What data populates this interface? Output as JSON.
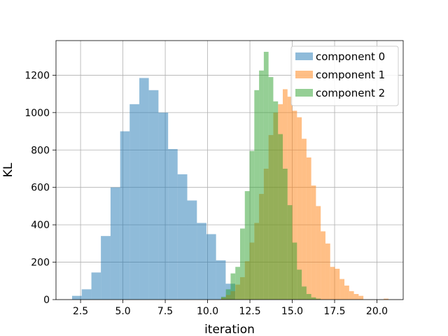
{
  "chart_data": {
    "type": "bar",
    "subtype": "histogram",
    "title": "",
    "xlabel": "iteration",
    "ylabel": "KL",
    "xlim": [
      1.05,
      21.55
    ],
    "ylim": [
      0,
      1385
    ],
    "xticks": [
      2.5,
      5.0,
      7.5,
      10.0,
      12.5,
      15.0,
      17.5,
      20.0
    ],
    "xtick_labels": [
      "2.5",
      "5.0",
      "7.5",
      "10.0",
      "12.5",
      "15.0",
      "17.5",
      "20.0"
    ],
    "yticks": [
      0,
      200,
      400,
      600,
      800,
      1000,
      1200
    ],
    "ytick_labels": [
      "0",
      "200",
      "400",
      "600",
      "800",
      "1000",
      "1200"
    ],
    "grid": true,
    "legend_position": "top-right",
    "series": [
      {
        "name": "component 0",
        "color": "#1f77b4",
        "opacity": 0.5,
        "bins": [
          [
            2.0,
            2.57,
            20
          ],
          [
            2.57,
            3.14,
            55
          ],
          [
            3.14,
            3.7,
            145
          ],
          [
            3.7,
            4.27,
            340
          ],
          [
            4.27,
            4.84,
            600
          ],
          [
            4.84,
            5.4,
            900
          ],
          [
            5.4,
            5.97,
            1045
          ],
          [
            5.97,
            6.53,
            1185
          ],
          [
            6.53,
            7.1,
            1120
          ],
          [
            7.1,
            7.67,
            1000
          ],
          [
            7.67,
            8.23,
            805
          ],
          [
            8.23,
            8.8,
            670
          ],
          [
            8.8,
            9.37,
            530
          ],
          [
            9.37,
            9.93,
            410
          ],
          [
            9.93,
            10.5,
            350
          ],
          [
            10.5,
            11.07,
            210
          ],
          [
            11.07,
            11.63,
            85
          ]
        ]
      },
      {
        "name": "component 1",
        "color": "#ff7f0e",
        "opacity": 0.5,
        "bins": [
          [
            10.8,
            11.08,
            10
          ],
          [
            11.08,
            11.36,
            25
          ],
          [
            11.36,
            11.64,
            45
          ],
          [
            11.64,
            11.92,
            80
          ],
          [
            11.92,
            12.2,
            120
          ],
          [
            12.2,
            12.48,
            205
          ],
          [
            12.48,
            12.76,
            305
          ],
          [
            12.76,
            13.04,
            410
          ],
          [
            13.04,
            13.32,
            565
          ],
          [
            13.32,
            13.6,
            700
          ],
          [
            13.6,
            13.88,
            880
          ],
          [
            13.88,
            14.16,
            1000
          ],
          [
            14.16,
            14.44,
            1045
          ],
          [
            14.44,
            14.72,
            1125
          ],
          [
            14.72,
            15.0,
            1085
          ],
          [
            15.0,
            15.28,
            1010
          ],
          [
            15.28,
            15.56,
            975
          ],
          [
            15.56,
            15.84,
            860
          ],
          [
            15.84,
            16.12,
            760
          ],
          [
            16.12,
            16.4,
            610
          ],
          [
            16.4,
            16.68,
            500
          ],
          [
            16.68,
            16.96,
            365
          ],
          [
            16.96,
            17.24,
            300
          ],
          [
            17.24,
            17.52,
            175
          ],
          [
            17.52,
            17.8,
            165
          ],
          [
            17.8,
            18.08,
            110
          ],
          [
            18.08,
            18.36,
            75
          ],
          [
            18.36,
            18.64,
            45
          ],
          [
            18.64,
            18.92,
            30
          ],
          [
            18.92,
            19.2,
            20
          ],
          [
            20.4,
            20.68,
            5
          ]
        ]
      },
      {
        "name": "component 2",
        "color": "#2ca02c",
        "opacity": 0.5,
        "bins": [
          [
            10.8,
            11.08,
            15
          ],
          [
            11.08,
            11.36,
            55
          ],
          [
            11.36,
            11.64,
            140
          ],
          [
            11.64,
            11.92,
            175
          ],
          [
            11.92,
            12.2,
            380
          ],
          [
            12.2,
            12.48,
            580
          ],
          [
            12.48,
            12.76,
            795
          ],
          [
            12.76,
            13.04,
            1120
          ],
          [
            13.04,
            13.32,
            1225
          ],
          [
            13.32,
            13.6,
            1325
          ],
          [
            13.6,
            13.88,
            1190
          ],
          [
            13.88,
            14.16,
            1060
          ],
          [
            14.16,
            14.44,
            885
          ],
          [
            14.44,
            14.72,
            700
          ],
          [
            14.72,
            15.0,
            505
          ],
          [
            15.0,
            15.28,
            305
          ],
          [
            15.28,
            15.56,
            160
          ],
          [
            15.56,
            15.84,
            70
          ],
          [
            15.84,
            16.12,
            30
          ],
          [
            16.12,
            16.4,
            12
          ],
          [
            16.4,
            16.68,
            5
          ]
        ]
      }
    ]
  }
}
